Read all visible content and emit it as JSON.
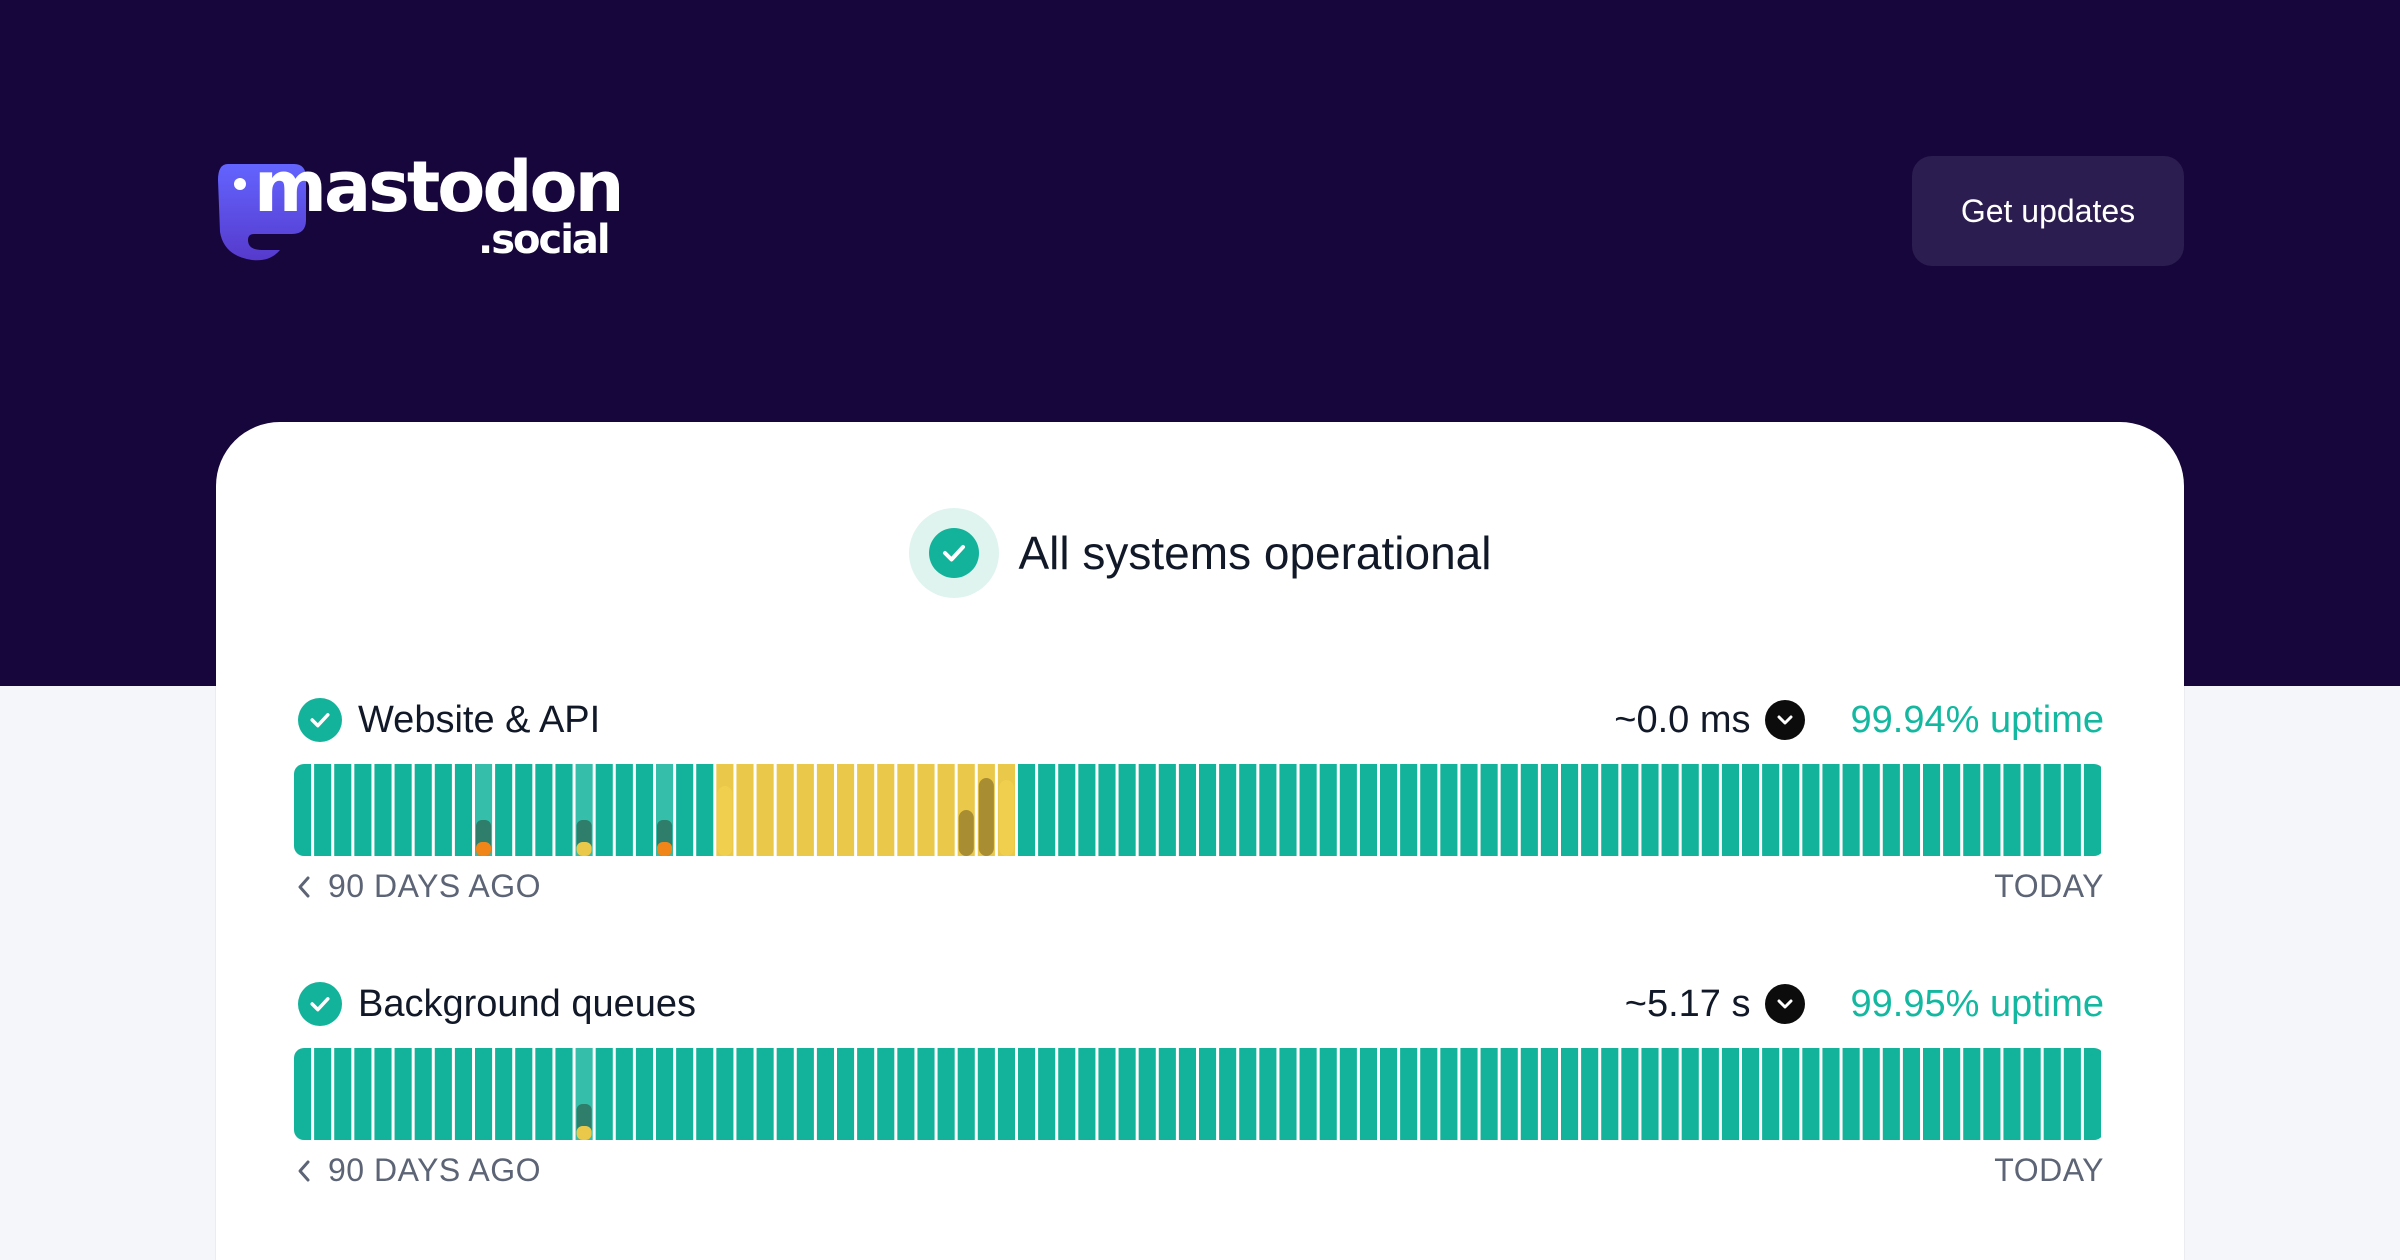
{
  "brand": {
    "name": "mastodon",
    "suffix": ".social"
  },
  "header": {
    "get_updates_label": "Get updates"
  },
  "status": {
    "text": "All systems operational"
  },
  "colors": {
    "background_dark": "#17063b",
    "operational": "#12b39a",
    "degraded": "#e9c84a",
    "incident_orange": "#f0861a",
    "uptime_text": "#14b8a0"
  },
  "monitors": [
    {
      "name": "Website & API",
      "response": "~0.0 ms",
      "uptime": "99.94% uptime",
      "range_start": "90 DAYS AGO",
      "range_end": "TODAY",
      "days": [
        {
          "i": 9,
          "state": "minor",
          "marker": "orange"
        },
        {
          "i": 14,
          "state": "minor",
          "marker": "yellow"
        },
        {
          "i": 18,
          "state": "minor",
          "marker": "orange"
        },
        {
          "i": 21,
          "state": "degraded"
        },
        {
          "i": 22,
          "state": "degraded"
        },
        {
          "i": 23,
          "state": "degraded"
        },
        {
          "i": 24,
          "state": "degraded"
        },
        {
          "i": 25,
          "state": "degraded"
        },
        {
          "i": 26,
          "state": "degraded"
        },
        {
          "i": 27,
          "state": "degraded"
        },
        {
          "i": 28,
          "state": "degraded"
        },
        {
          "i": 29,
          "state": "degraded"
        },
        {
          "i": 30,
          "state": "degraded"
        },
        {
          "i": 31,
          "state": "degraded"
        },
        {
          "i": 32,
          "state": "degraded"
        },
        {
          "i": 33,
          "state": "degraded"
        },
        {
          "i": 34,
          "state": "degraded"
        },
        {
          "i": 35,
          "state": "degraded"
        }
      ]
    },
    {
      "name": "Background queues",
      "response": "~5.17 s",
      "uptime": "99.95% uptime",
      "range_start": "90 DAYS AGO",
      "range_end": "TODAY",
      "days": [
        {
          "i": 14,
          "state": "minor",
          "marker": "yellow"
        }
      ]
    }
  ]
}
